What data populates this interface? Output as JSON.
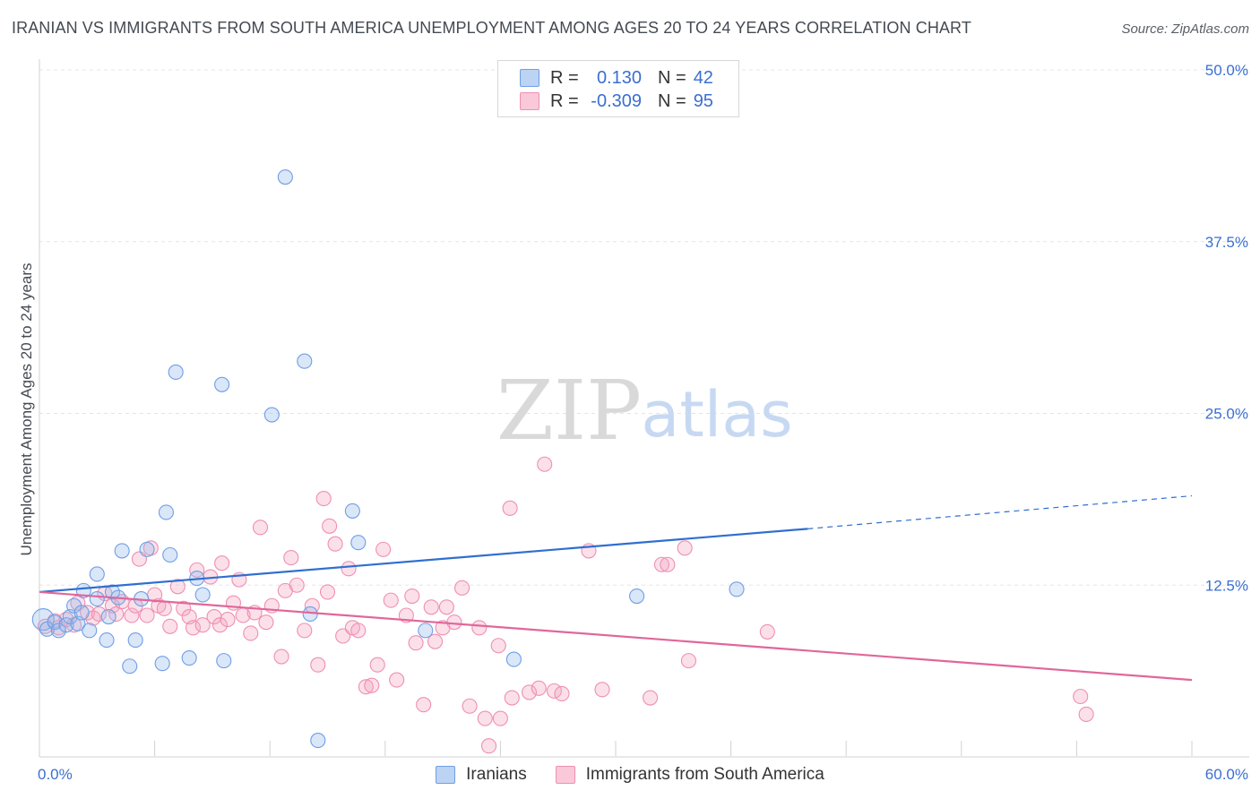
{
  "header": {
    "title": "IRANIAN VS IMMIGRANTS FROM SOUTH AMERICA UNEMPLOYMENT AMONG AGES 20 TO 24 YEARS CORRELATION CHART",
    "source": "Source: ZipAtlas.com"
  },
  "watermark": {
    "zip": "ZIP",
    "atlas": "atlas"
  },
  "legend": {
    "rows": [
      {
        "r_label": "R =",
        "r_value": "0.130",
        "n_label": "N =",
        "n_value": "42"
      },
      {
        "r_label": "R =",
        "r_value": "-0.309",
        "n_label": "N =",
        "n_value": "95"
      }
    ]
  },
  "chart_data": {
    "type": "scatter",
    "title": "IRANIAN VS IMMIGRANTS FROM SOUTH AMERICA UNEMPLOYMENT AMONG AGES 20 TO 24 YEARS CORRELATION CHART",
    "xlabel": "",
    "ylabel": "Unemployment Among Ages 20 to 24 years",
    "xlim": [
      0,
      60
    ],
    "ylim": [
      0,
      50
    ],
    "x_tick_labels": [
      "0.0%",
      "60.0%"
    ],
    "y_ticks": [
      12.5,
      25.0,
      37.5,
      50.0
    ],
    "y_tick_labels": [
      "12.5%",
      "25.0%",
      "37.5%",
      "50.0%"
    ],
    "grid": true,
    "colors": {
      "Iranians": "#6f9ee6",
      "Immigrants from South America": "#ef8fb0",
      "blue_line": "#2f6fd0",
      "pink_line": "#e0679a",
      "axis_text": "#3a6fd0"
    },
    "series": [
      {
        "name": "Iranians",
        "r": 0.13,
        "n": 42,
        "trend": {
          "x": [
            0,
            40
          ],
          "y": [
            12.0,
            16.6
          ],
          "dashed_to": [
            60,
            19.0
          ]
        },
        "points": [
          [
            0.2,
            10.0
          ],
          [
            0.4,
            9.3
          ],
          [
            0.8,
            9.8
          ],
          [
            1.0,
            9.2
          ],
          [
            1.4,
            9.6
          ],
          [
            1.6,
            10.2
          ],
          [
            1.8,
            11.0
          ],
          [
            2.0,
            9.7
          ],
          [
            2.2,
            10.5
          ],
          [
            2.6,
            9.2
          ],
          [
            2.3,
            12.1
          ],
          [
            3.0,
            11.5
          ],
          [
            3.0,
            13.3
          ],
          [
            3.5,
            8.5
          ],
          [
            3.6,
            10.2
          ],
          [
            3.8,
            12.0
          ],
          [
            4.1,
            11.6
          ],
          [
            4.3,
            15.0
          ],
          [
            4.7,
            6.6
          ],
          [
            5.0,
            8.5
          ],
          [
            5.3,
            11.5
          ],
          [
            5.6,
            15.1
          ],
          [
            6.4,
            6.8
          ],
          [
            6.6,
            17.8
          ],
          [
            6.8,
            14.7
          ],
          [
            7.1,
            28.0
          ],
          [
            7.8,
            7.2
          ],
          [
            8.2,
            13.0
          ],
          [
            8.5,
            11.8
          ],
          [
            9.5,
            27.1
          ],
          [
            9.6,
            7.0
          ],
          [
            12.1,
            24.9
          ],
          [
            12.8,
            42.2
          ],
          [
            13.8,
            28.8
          ],
          [
            14.1,
            10.4
          ],
          [
            14.5,
            1.2
          ],
          [
            16.3,
            17.9
          ],
          [
            16.6,
            15.6
          ],
          [
            20.1,
            9.2
          ],
          [
            24.7,
            7.1
          ],
          [
            31.1,
            11.7
          ],
          [
            36.3,
            12.2
          ]
        ]
      },
      {
        "name": "Immigrants from South America",
        "r": -0.309,
        "n": 95,
        "trend": {
          "x": [
            0,
            60
          ],
          "y": [
            12.0,
            5.6
          ]
        },
        "points": [
          [
            0.3,
            9.5
          ],
          [
            0.8,
            9.9
          ],
          [
            1.0,
            9.4
          ],
          [
            1.4,
            10.0
          ],
          [
            1.8,
            9.6
          ],
          [
            2.0,
            11.2
          ],
          [
            2.5,
            10.5
          ],
          [
            2.8,
            10.1
          ],
          [
            3.1,
            10.4
          ],
          [
            3.4,
            11.9
          ],
          [
            3.8,
            11.0
          ],
          [
            4.0,
            10.4
          ],
          [
            4.3,
            11.3
          ],
          [
            4.8,
            10.3
          ],
          [
            5.0,
            11.0
          ],
          [
            5.2,
            14.4
          ],
          [
            5.6,
            10.3
          ],
          [
            5.8,
            15.2
          ],
          [
            6.0,
            11.8
          ],
          [
            6.2,
            11.0
          ],
          [
            6.5,
            10.8
          ],
          [
            6.8,
            9.5
          ],
          [
            7.2,
            12.4
          ],
          [
            7.5,
            10.8
          ],
          [
            7.8,
            10.2
          ],
          [
            8.0,
            9.4
          ],
          [
            8.2,
            13.6
          ],
          [
            8.5,
            9.6
          ],
          [
            8.9,
            13.1
          ],
          [
            9.1,
            10.2
          ],
          [
            9.4,
            9.6
          ],
          [
            9.5,
            14.1
          ],
          [
            9.8,
            10.0
          ],
          [
            10.1,
            11.2
          ],
          [
            10.4,
            12.9
          ],
          [
            10.6,
            10.3
          ],
          [
            11.0,
            9.0
          ],
          [
            11.2,
            10.5
          ],
          [
            11.5,
            16.7
          ],
          [
            11.8,
            9.8
          ],
          [
            12.1,
            11.0
          ],
          [
            12.6,
            7.3
          ],
          [
            12.8,
            12.1
          ],
          [
            13.1,
            14.5
          ],
          [
            13.4,
            12.5
          ],
          [
            13.8,
            9.2
          ],
          [
            14.2,
            11.0
          ],
          [
            14.5,
            6.7
          ],
          [
            14.8,
            18.8
          ],
          [
            15.0,
            12.0
          ],
          [
            15.1,
            16.8
          ],
          [
            15.4,
            15.5
          ],
          [
            15.8,
            8.8
          ],
          [
            16.1,
            13.7
          ],
          [
            16.3,
            9.4
          ],
          [
            16.6,
            9.2
          ],
          [
            17.0,
            5.1
          ],
          [
            17.3,
            5.2
          ],
          [
            17.6,
            6.7
          ],
          [
            17.9,
            15.1
          ],
          [
            18.3,
            11.4
          ],
          [
            18.6,
            5.6
          ],
          [
            19.1,
            10.3
          ],
          [
            19.4,
            11.7
          ],
          [
            19.6,
            8.3
          ],
          [
            20.0,
            3.8
          ],
          [
            20.4,
            10.9
          ],
          [
            20.6,
            8.4
          ],
          [
            21.0,
            9.4
          ],
          [
            21.2,
            10.9
          ],
          [
            21.6,
            9.8
          ],
          [
            22.0,
            12.3
          ],
          [
            22.4,
            3.7
          ],
          [
            22.9,
            9.4
          ],
          [
            23.2,
            2.8
          ],
          [
            23.4,
            0.8
          ],
          [
            23.9,
            8.1
          ],
          [
            24.0,
            2.8
          ],
          [
            24.5,
            18.1
          ],
          [
            24.6,
            4.3
          ],
          [
            25.5,
            4.7
          ],
          [
            26.0,
            5.0
          ],
          [
            26.3,
            21.3
          ],
          [
            26.8,
            4.8
          ],
          [
            27.2,
            4.6
          ],
          [
            28.6,
            15.0
          ],
          [
            29.3,
            4.9
          ],
          [
            31.8,
            4.3
          ],
          [
            32.4,
            14.0
          ],
          [
            32.7,
            14.0
          ],
          [
            33.6,
            15.2
          ],
          [
            33.8,
            7.0
          ],
          [
            37.9,
            9.1
          ],
          [
            54.2,
            4.4
          ],
          [
            54.5,
            3.1
          ]
        ]
      }
    ]
  }
}
